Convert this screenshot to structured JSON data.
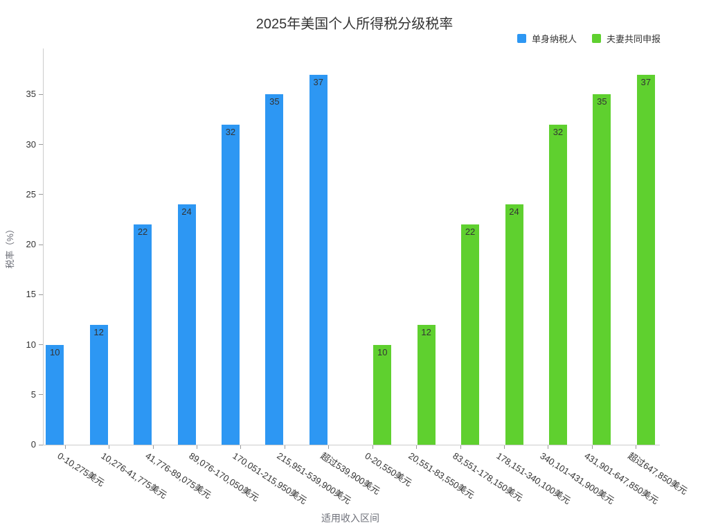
{
  "chart_data": {
    "type": "bar",
    "title": "2025年美国个人所得税分级税率",
    "xlabel": "适用收入区间",
    "ylabel": "税率（%）",
    "ylim": [
      0,
      39.6
    ],
    "yticks": [
      0,
      5,
      10,
      15,
      20,
      25,
      30,
      35
    ],
    "grid": false,
    "legend_position": "top-right",
    "categories": [
      "0-10,275美元",
      "10,276-41,775美元",
      "41,776-89,075美元",
      "89,076-170,050美元",
      "170,051-215,950美元",
      "215,951-539,900美元",
      "超过539,900美元",
      "0-20,550美元",
      "20,551-83,550美元",
      "83,551-178,150美元",
      "178,151-340,100美元",
      "340,101-431,900美元",
      "431,901-647,850美元",
      "超过647,850美元"
    ],
    "series": [
      {
        "name": "单身纳税人",
        "color": "#2d97f3",
        "values": [
          10,
          12,
          22,
          24,
          32,
          35,
          37,
          null,
          null,
          null,
          null,
          null,
          null,
          null
        ]
      },
      {
        "name": "夫妻共同申报",
        "color": "#5fd02f",
        "values": [
          null,
          null,
          null,
          null,
          null,
          null,
          null,
          10,
          12,
          22,
          24,
          32,
          35,
          37
        ]
      }
    ],
    "value_label_color": "#333333"
  }
}
